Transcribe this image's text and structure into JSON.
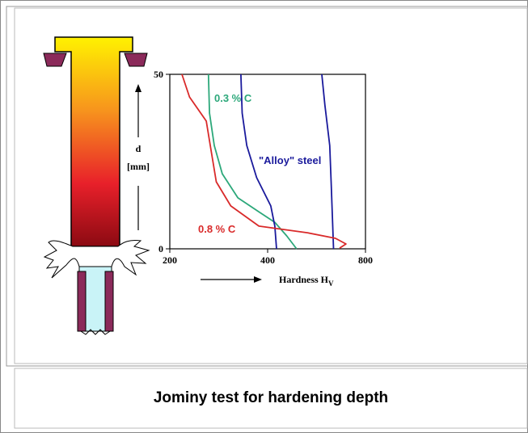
{
  "chart_data": {
    "type": "line",
    "caption": "Jominy test for hardening depth",
    "x_label": "Hardness H",
    "x_label_sub": "V",
    "y_label": [
      "d",
      "[mm]"
    ],
    "log_scale": "x",
    "xlim": [
      200,
      800
    ],
    "xticks": [
      200,
      400,
      800
    ],
    "ylim": [
      0,
      50
    ],
    "yticks": [
      0,
      50
    ],
    "series": [
      {
        "name": "0.3 % C",
        "color": "#2ca87a",
        "values": [
          263,
          265,
          274,
          290,
          324,
          376,
          421,
          458,
          491
        ],
        "depths": [
          50,
          38.9,
          29.6,
          21.5,
          14.6,
          10.6,
          7.6,
          3.7,
          0
        ]
      },
      {
        "name": "\"Alloy\" steel",
        "color": "#1a1a9c",
        "values": [
          331,
          334,
          345,
          370,
          409,
          421,
          426,
          null,
          587,
          600,
          621,
          628,
          638
        ],
        "depths": [
          50,
          38.9,
          29.6,
          20.4,
          12.3,
          6.5,
          0,
          null,
          50,
          41.2,
          29.6,
          18.1,
          0
        ]
      },
      {
        "name": "0.8 % C",
        "color": "#d92a2a",
        "values": [
          218,
          230,
          259,
          269,
          278,
          308,
          376,
          530,
          647,
          697,
          666
        ],
        "depths": [
          50,
          43.5,
          36.6,
          27.3,
          19.2,
          12.3,
          6.5,
          4.6,
          3.0,
          1.4,
          0.2
        ]
      }
    ]
  }
}
